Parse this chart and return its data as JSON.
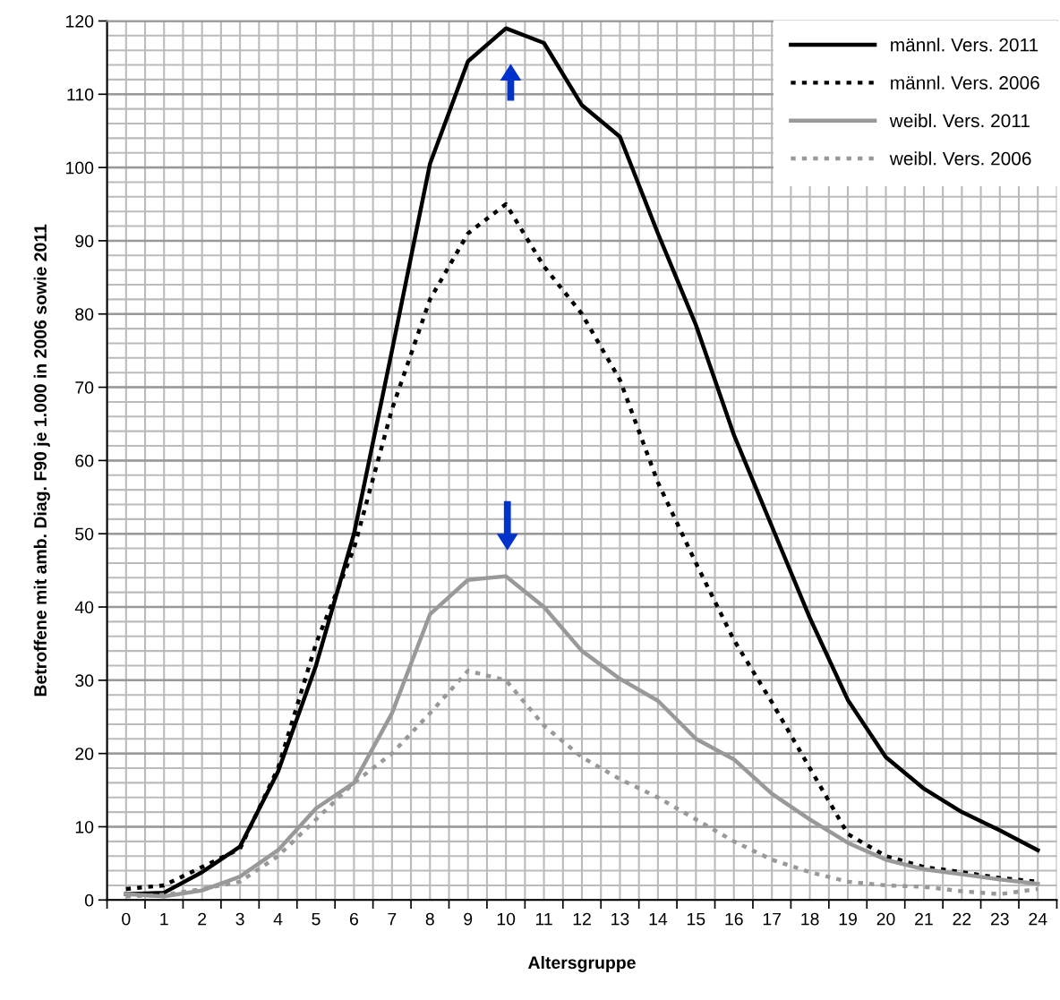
{
  "chart_data": {
    "type": "line",
    "xlabel": "Altersgruppe",
    "ylabel": "Betroffene mit amb. Diag. F90 je 1.000 in 2006 sowie 2011",
    "categories": [
      "0",
      "1",
      "2",
      "3",
      "4",
      "5",
      "6",
      "7",
      "8",
      "9",
      "10",
      "11",
      "12",
      "13",
      "14",
      "15",
      "16",
      "17",
      "18",
      "19",
      "20",
      "21",
      "22",
      "23",
      "24"
    ],
    "ylim": [
      0,
      120
    ],
    "yticks": [
      0,
      10,
      20,
      30,
      40,
      50,
      60,
      70,
      80,
      90,
      100,
      110,
      120
    ],
    "grid": true,
    "legend": "top right",
    "marker": "none",
    "series": [
      {
        "name": "männl. Vers. 2011",
        "color": "#000000",
        "line_style": "solid",
        "values": [
          0.8,
          1.0,
          3.8,
          7.3,
          17.5,
          32,
          50,
          75,
          100.5,
          114.5,
          119,
          117,
          108.5,
          104.2,
          91,
          78.5,
          63.5,
          51,
          38.5,
          27.3,
          19.5,
          15.2,
          12,
          9.5,
          6.8
        ]
      },
      {
        "name": "männl. Vers. 2006",
        "color": "#000000",
        "line_style": "dashed",
        "values": [
          1.5,
          2,
          4.5,
          7,
          18,
          35,
          48,
          67,
          82,
          91,
          95,
          86.5,
          80,
          71,
          57,
          46,
          35.5,
          27,
          18,
          9,
          6,
          4.5,
          3.8,
          3,
          2.5
        ]
      },
      {
        "name": "weibl. Vers. 2011",
        "color": "#999999",
        "line_style": "solid",
        "values": [
          0.8,
          0.5,
          1.3,
          3.2,
          6.8,
          12.5,
          16,
          25.5,
          39,
          43.7,
          44.2,
          40,
          34,
          30.2,
          27.2,
          22,
          19.2,
          14.5,
          11,
          7.8,
          5.5,
          4.2,
          3.5,
          2.8,
          2.2
        ]
      },
      {
        "name": "weibl. Vers. 2006",
        "color": "#999999",
        "line_style": "dashed",
        "values": [
          0.5,
          0.7,
          1.5,
          2.5,
          6,
          11,
          16,
          20,
          25.5,
          31.3,
          30,
          23.8,
          19.5,
          16.5,
          14,
          11,
          8,
          5.5,
          3.8,
          2.5,
          2,
          1.8,
          1.2,
          0.8,
          1.5
        ]
      }
    ]
  }
}
